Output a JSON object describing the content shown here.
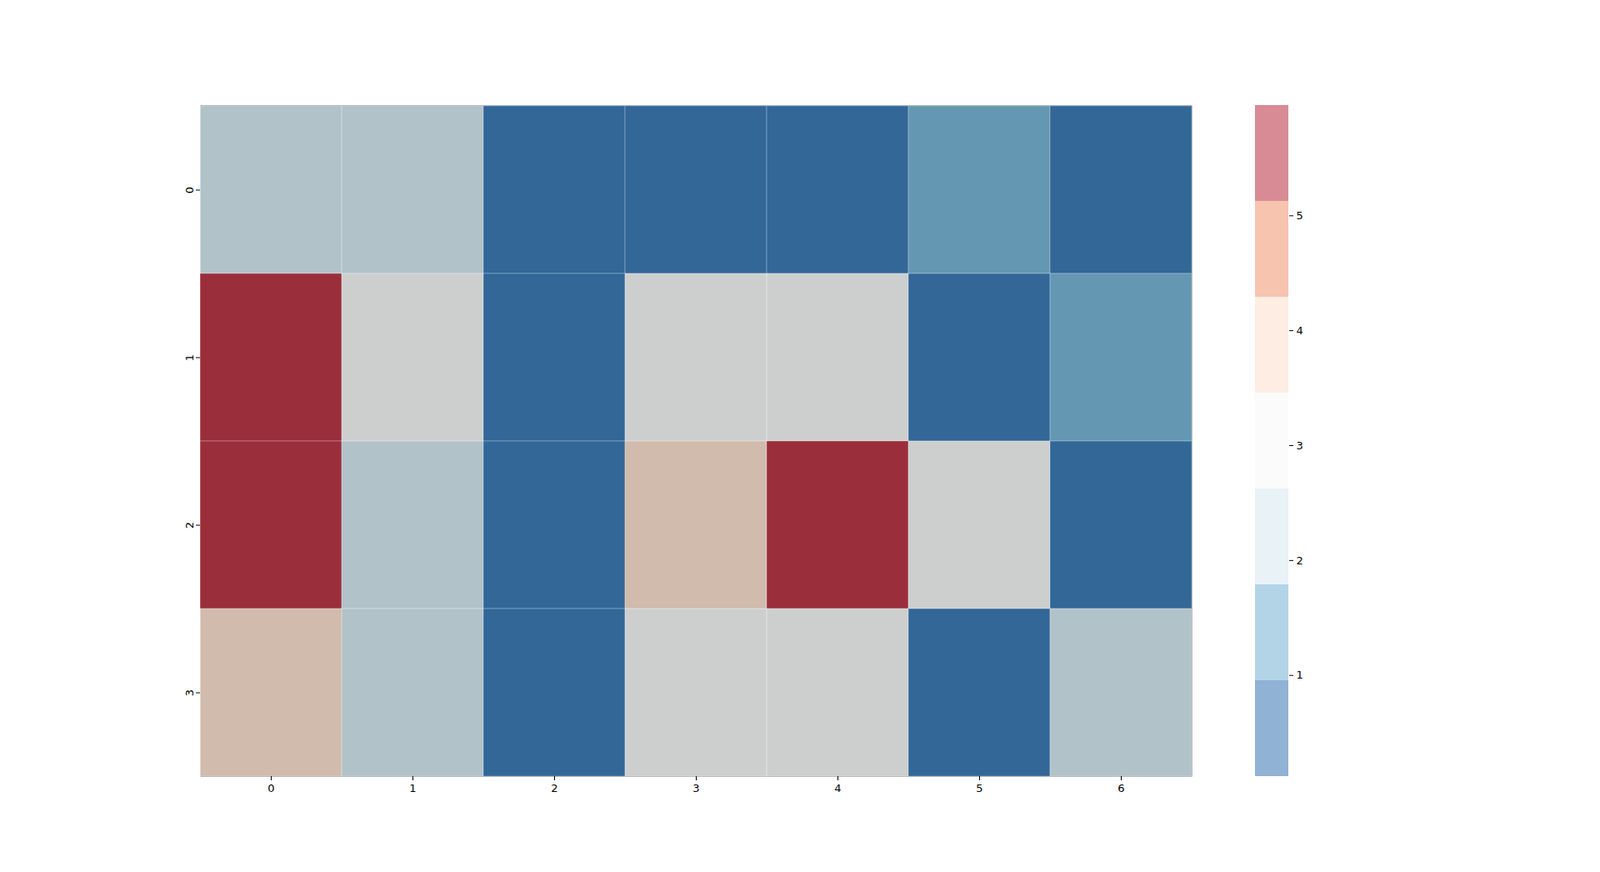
{
  "chart_data": {
    "type": "heatmap",
    "x": [
      0,
      1,
      2,
      3,
      4,
      5,
      6
    ],
    "y": [
      0,
      1,
      2,
      3
    ],
    "cells": [
      [
        2.2,
        2.2,
        0.5,
        0.5,
        0.5,
        1.4,
        0.5
      ],
      [
        5.5,
        3.0,
        0.5,
        3.0,
        3.0,
        0.5,
        1.4
      ],
      [
        5.5,
        2.2,
        0.5,
        3.9,
        5.5,
        3.0,
        0.5
      ],
      [
        3.9,
        2.2,
        0.5,
        3.0,
        3.0,
        0.5,
        2.2
      ]
    ],
    "colorbar_range": [
      0.12,
      5.96
    ],
    "colorbar_ticks": [
      1,
      2,
      3,
      4,
      5
    ],
    "colors": [
      "#2166ac",
      "#67a9cf",
      "#d1e5f0",
      "#f7f7f7",
      "#fddbc7",
      "#ef8a62",
      "#b2182b"
    ]
  }
}
